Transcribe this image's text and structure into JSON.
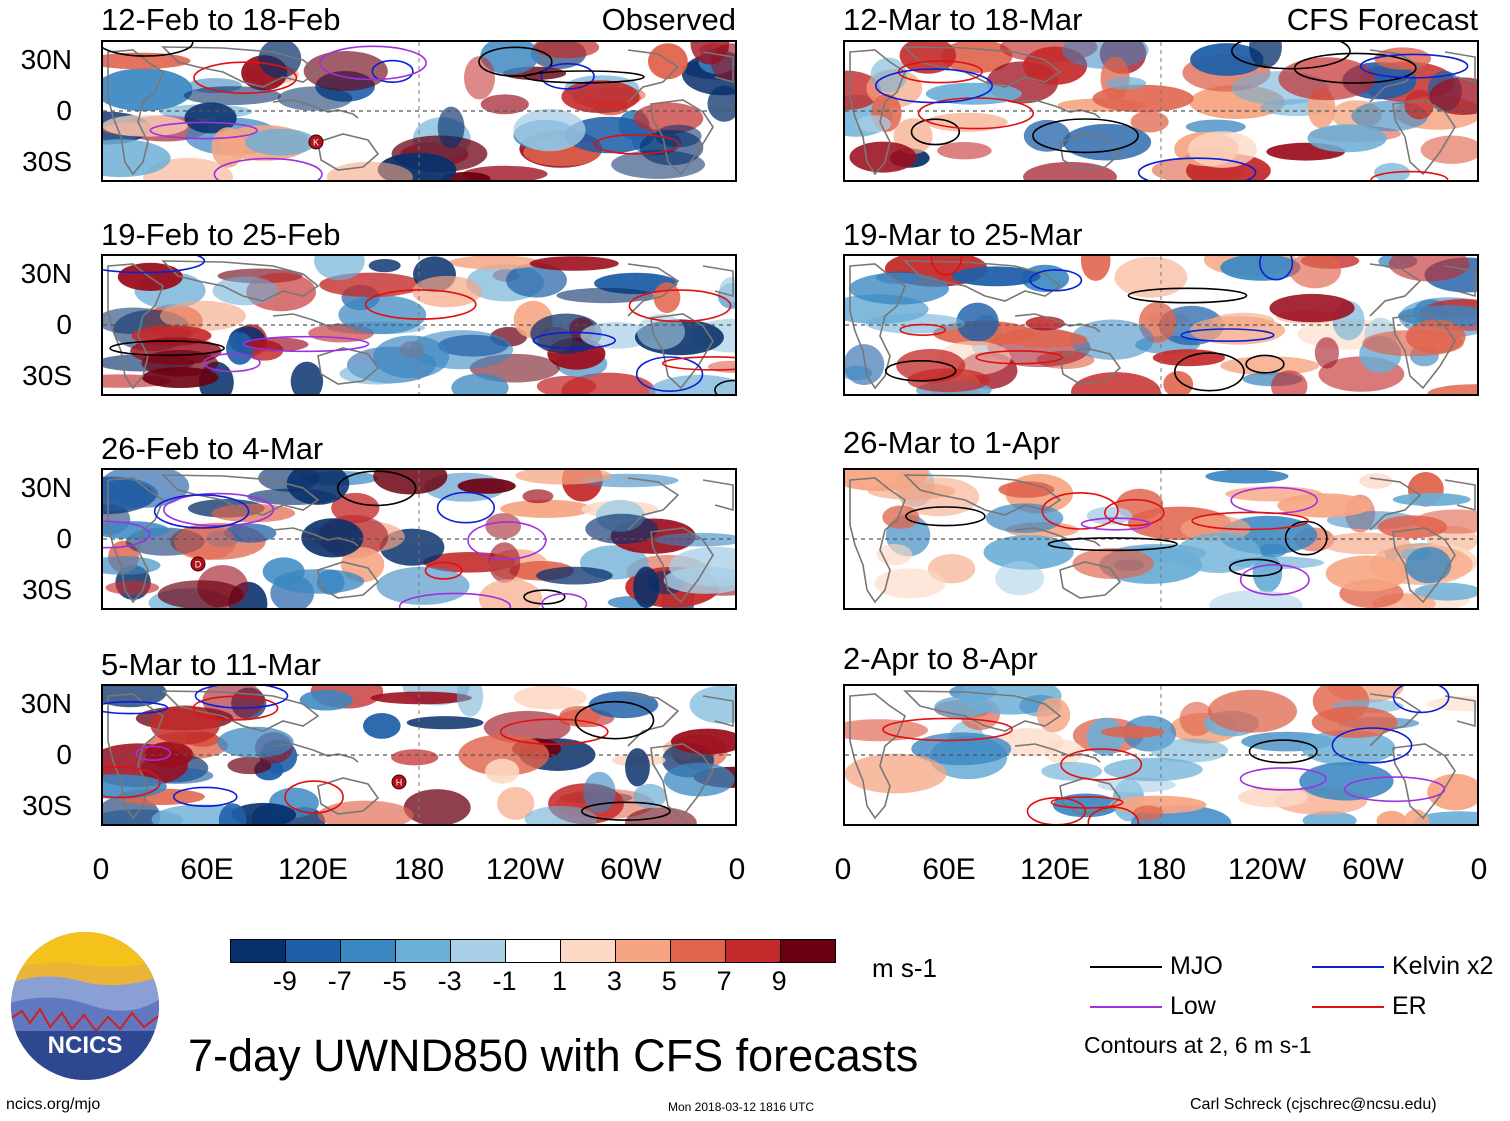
{
  "panels": {
    "observed": [
      {
        "title": "12-Feb to 18-Feb",
        "tag": "Observed"
      },
      {
        "title": "19-Feb to 25-Feb",
        "tag": ""
      },
      {
        "title": "26-Feb to 4-Mar",
        "tag": ""
      },
      {
        "title": "5-Mar to 11-Mar",
        "tag": ""
      }
    ],
    "forecast": [
      {
        "title": "12-Mar to 18-Mar",
        "tag": "CFS Forecast"
      },
      {
        "title": "19-Mar to 25-Mar",
        "tag": ""
      },
      {
        "title": "26-Mar to 1-Apr",
        "tag": ""
      },
      {
        "title": "2-Apr to 8-Apr",
        "tag": ""
      }
    ]
  },
  "lat_labels": [
    "30N",
    "0",
    "30S"
  ],
  "lon_labels": [
    "0",
    "60E",
    "120E",
    "180",
    "120W",
    "60W",
    "0"
  ],
  "colorbar": {
    "labels": [
      "-9",
      "-7",
      "-5",
      "-3",
      "-1",
      "1",
      "3",
      "5",
      "7",
      "9"
    ],
    "colors": [
      "#08306b",
      "#1f5fa8",
      "#3a87c2",
      "#6baed6",
      "#a8cfe6",
      "#dbe9f5",
      "#ffffff",
      "#fdd8c4",
      "#f6a582",
      "#e0644c",
      "#c42a2a",
      "#9c0e1e",
      "#6b0010"
    ],
    "units": "m s-1"
  },
  "legend": {
    "items": [
      {
        "label": "MJO",
        "color": "#000000"
      },
      {
        "label": "Kelvin x2",
        "color": "#0b1fd6"
      },
      {
        "label": "Low",
        "color": "#a030e0"
      },
      {
        "label": "ER",
        "color": "#e01010"
      }
    ],
    "note": "Contours at 2, 6 m s-1"
  },
  "logo": {
    "text": "NCICS"
  },
  "title": "7-day UWND850 with CFS forecasts",
  "footer": {
    "url": "ncics.org/mjo",
    "timestamp": "Mon 2018-03-12 1816 UTC",
    "author": "Carl Schreck (cjschrec@ncsu.edu)"
  },
  "storm_markers": [
    {
      "panel": "observed.0",
      "label": "K"
    },
    {
      "panel": "observed.2",
      "label": "D"
    },
    {
      "panel": "observed.3",
      "label": "H"
    }
  ]
}
